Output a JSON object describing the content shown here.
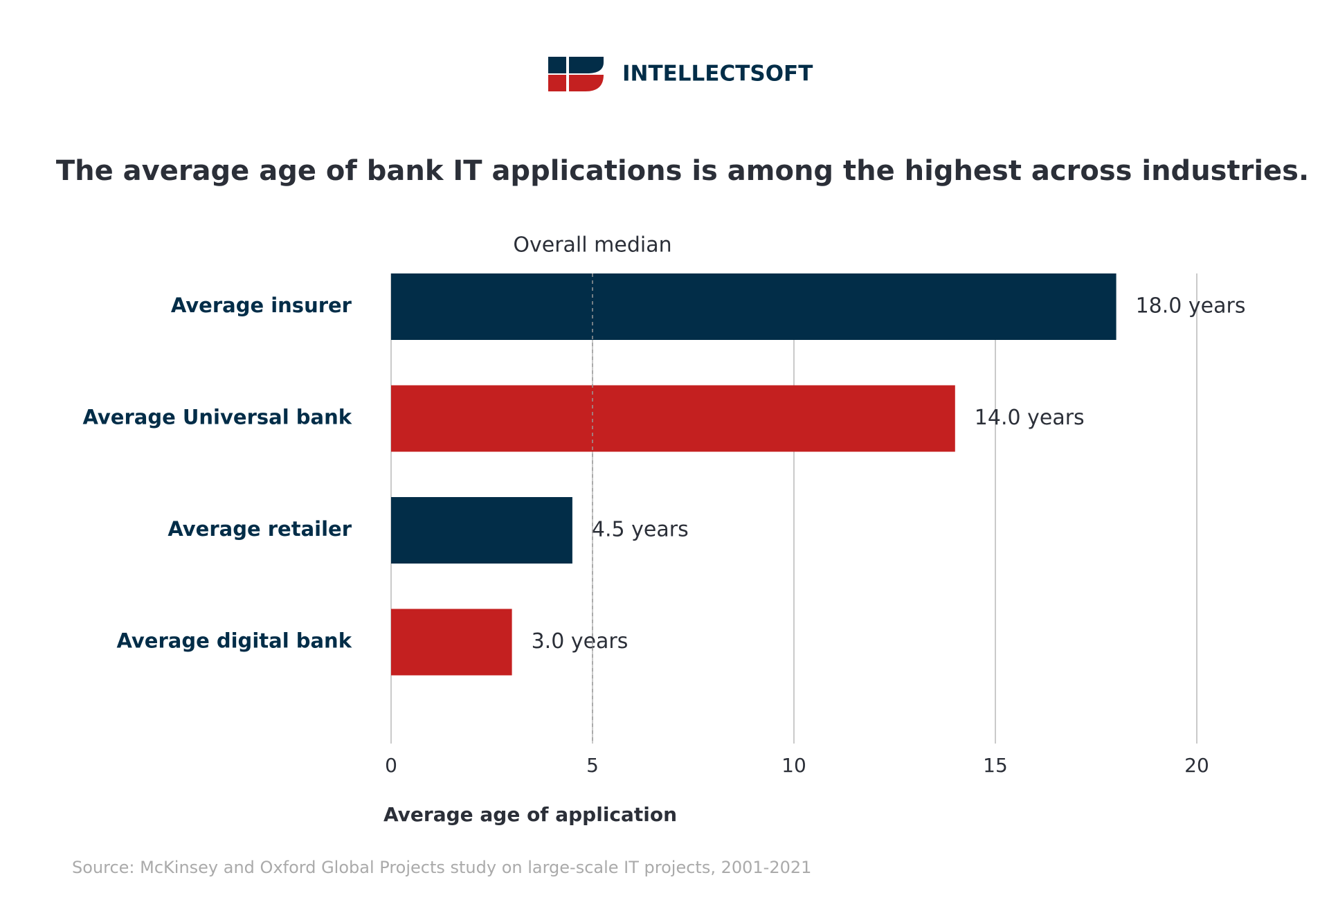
{
  "brand": "INTELLECTSOFT",
  "chart_data": {
    "type": "hbar",
    "title": "The average age of bank IT applications is among the highest across industries.",
    "categories": [
      "Average insurer",
      "Average Universal bank",
      "Average retailer",
      "Average digital bank"
    ],
    "values": [
      18,
      14,
      4.5,
      3
    ],
    "value_labels": [
      "18.0 years",
      "14.0 years",
      "4.5 years",
      "3.0 years"
    ],
    "colors": [
      "#022d48",
      "#c42020",
      "#022d48",
      "#c42020"
    ],
    "xlim": [
      0,
      20
    ],
    "xticks": [
      0,
      5,
      10,
      15,
      20
    ],
    "grid": true,
    "x_label": "Average age of application",
    "reference_line": {
      "value": 5,
      "label": "Overall median"
    },
    "source": "Source: McKinsey and Oxford Global Projects study on large-scale IT projects, 2001-2021"
  }
}
